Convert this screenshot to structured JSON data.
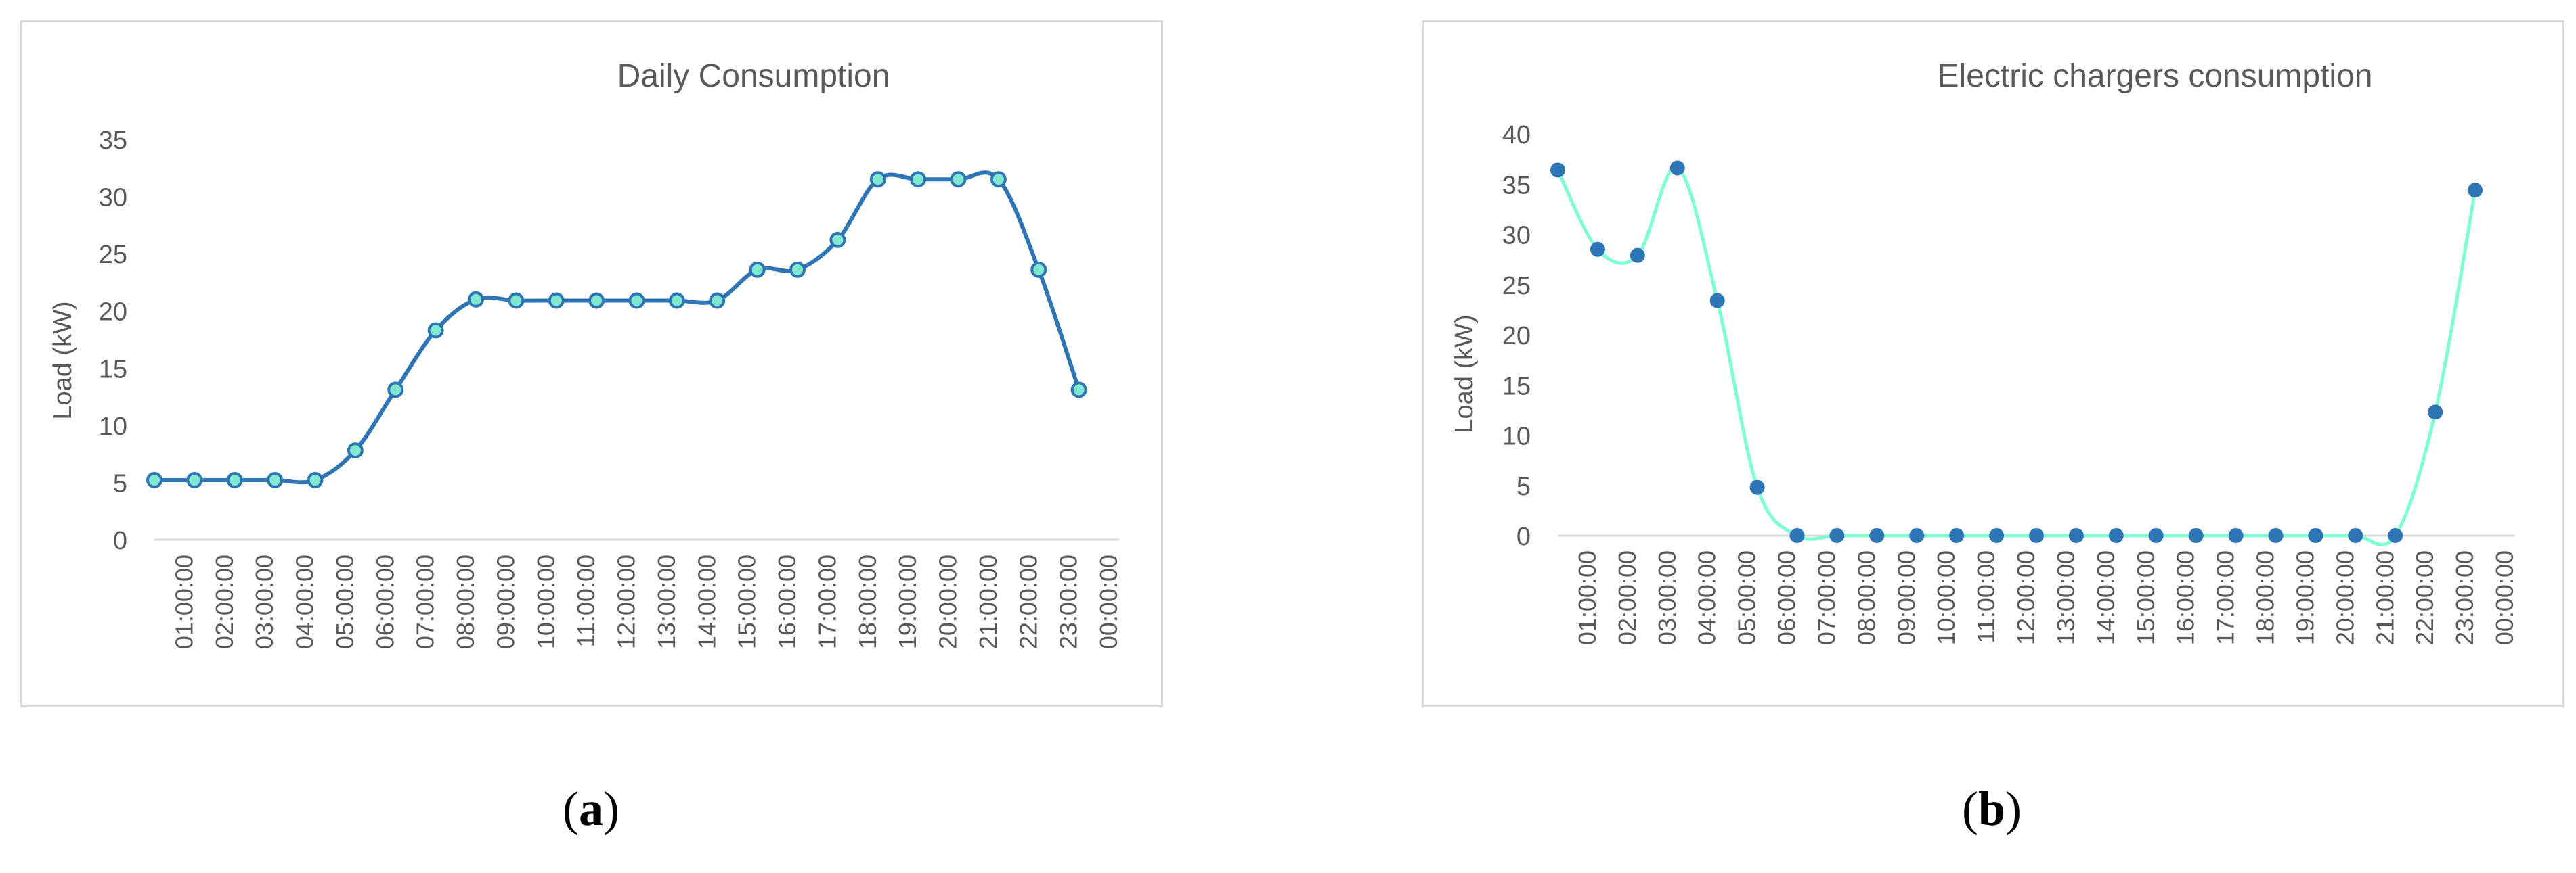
{
  "figure": {
    "caption_a": "a",
    "caption_b": "b"
  },
  "chart_data": [
    {
      "type": "line",
      "title": "Daily Consumption",
      "xlabel": "",
      "ylabel": "Load (kW)",
      "ylim": [
        0,
        35
      ],
      "yticks": [
        0,
        5,
        10,
        15,
        20,
        25,
        30,
        35
      ],
      "categories": [
        "01:00:00",
        "02:00:00",
        "03:00:00",
        "04:00:00",
        "05:00:00",
        "06:00:00",
        "07:00:00",
        "08:00:00",
        "09:00:00",
        "10:00:00",
        "11:00:00",
        "12:00:00",
        "13:00:00",
        "14:00:00",
        "15:00:00",
        "16:00:00",
        "17:00:00",
        "18:00:00",
        "19:00:00",
        "20:00:00",
        "21:00:00",
        "22:00:00",
        "23:00:00",
        "00:00:00"
      ],
      "values": [
        5.2,
        5.2,
        5.2,
        5.2,
        5.2,
        7.8,
        13.1,
        18.3,
        21.0,
        20.9,
        20.9,
        20.9,
        20.9,
        20.9,
        20.9,
        23.6,
        23.6,
        26.2,
        31.5,
        31.5,
        31.5,
        31.5,
        23.6,
        13.1
      ],
      "smooth": true,
      "grid": false,
      "legend": "none",
      "line_color": "#2e75b6",
      "marker_fill": "#7fe8cf",
      "marker_stroke": "#2e75b6"
    },
    {
      "type": "line",
      "title": "Electric chargers consumption",
      "xlabel": "",
      "ylabel": "Load (kW)",
      "ylim": [
        0,
        40
      ],
      "yticks": [
        0,
        5,
        10,
        15,
        20,
        25,
        30,
        35,
        40
      ],
      "categories": [
        "01:00:00",
        "02:00:00",
        "03:00:00",
        "04:00:00",
        "05:00:00",
        "06:00:00",
        "07:00:00",
        "08:00:00",
        "09:00:00",
        "10:00:00",
        "11:00:00",
        "12:00:00",
        "13:00:00",
        "14:00:00",
        "15:00:00",
        "16:00:00",
        "17:00:00",
        "18:00:00",
        "19:00:00",
        "20:00:00",
        "21:00:00",
        "22:00:00",
        "23:00:00",
        "00:00:00"
      ],
      "values": [
        36.4,
        28.5,
        27.9,
        36.6,
        23.4,
        4.8,
        0,
        0,
        0,
        0,
        0,
        0,
        0,
        0,
        0,
        0,
        0,
        0,
        0,
        0,
        0,
        0,
        12.3,
        34.4
      ],
      "smooth": true,
      "grid": false,
      "legend": "none",
      "line_color": "#7fffd4",
      "marker_fill": "#2e75b6",
      "marker_stroke": "#2e75b6"
    }
  ]
}
